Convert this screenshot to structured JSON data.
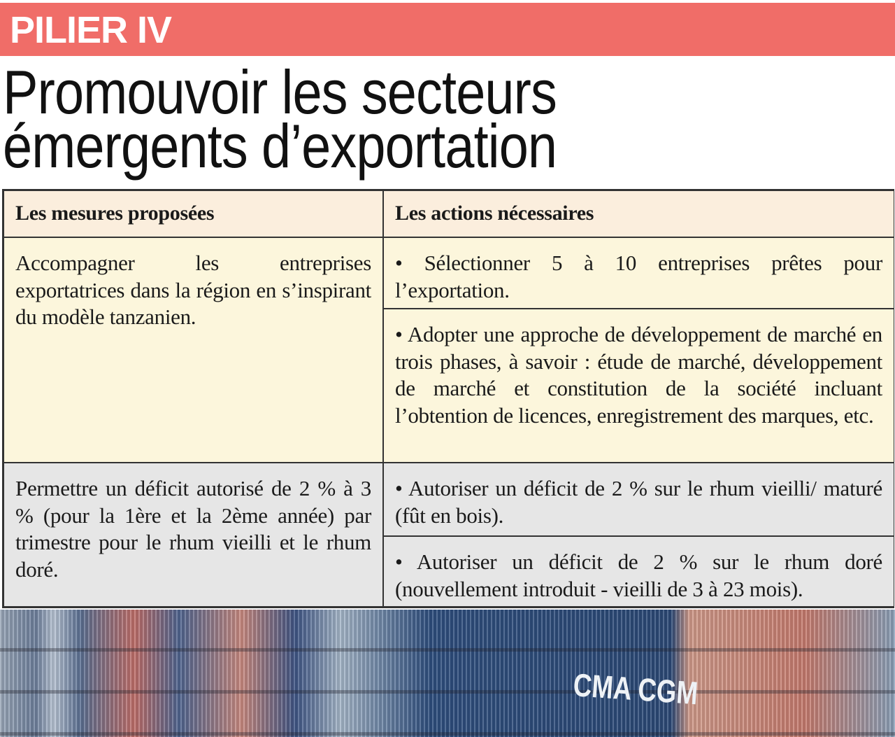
{
  "banner": "PILIER IV",
  "title": [
    "Promouvoir les secteurs",
    "émergents d’exportation"
  ],
  "table": {
    "headers": [
      "Les mesures proposées",
      "Les actions nécessaires"
    ],
    "rows": [
      {
        "measure": "Accompagner les entreprises exportatrices dans la région en s’inspirant du modèle tanzanien.",
        "actions": [
          "• Sélectionner 5 à 10 entreprises prêtes pour l’exportation.",
          "• Adopter une approche de développement de marché en trois phases, à savoir : étude de marché, développement de marché et constitution de la société incluant l’obtention de licences, enregistrement des marques, etc."
        ]
      },
      {
        "measure": "Permettre un déficit autorisé de 2 % à 3 % (pour la 1ère et la 2ème année) par trimestre pour le rhum vieilli et le rhum doré.",
        "actions": [
          "• Autoriser un déficit de 2 % sur le rhum vieilli/ maturé (fût en bois).",
          "• Autoriser un déficit de 2 % sur le rhum doré (nouvellement introduit - vieilli de 3 à 23 mois)."
        ]
      }
    ]
  },
  "photo": {
    "logo": "CMA CGM"
  },
  "colors": {
    "banner": "#f06d68",
    "header_row": "#fbeedd",
    "row1": "#fcf6dc",
    "row2": "#e6e6e6"
  }
}
